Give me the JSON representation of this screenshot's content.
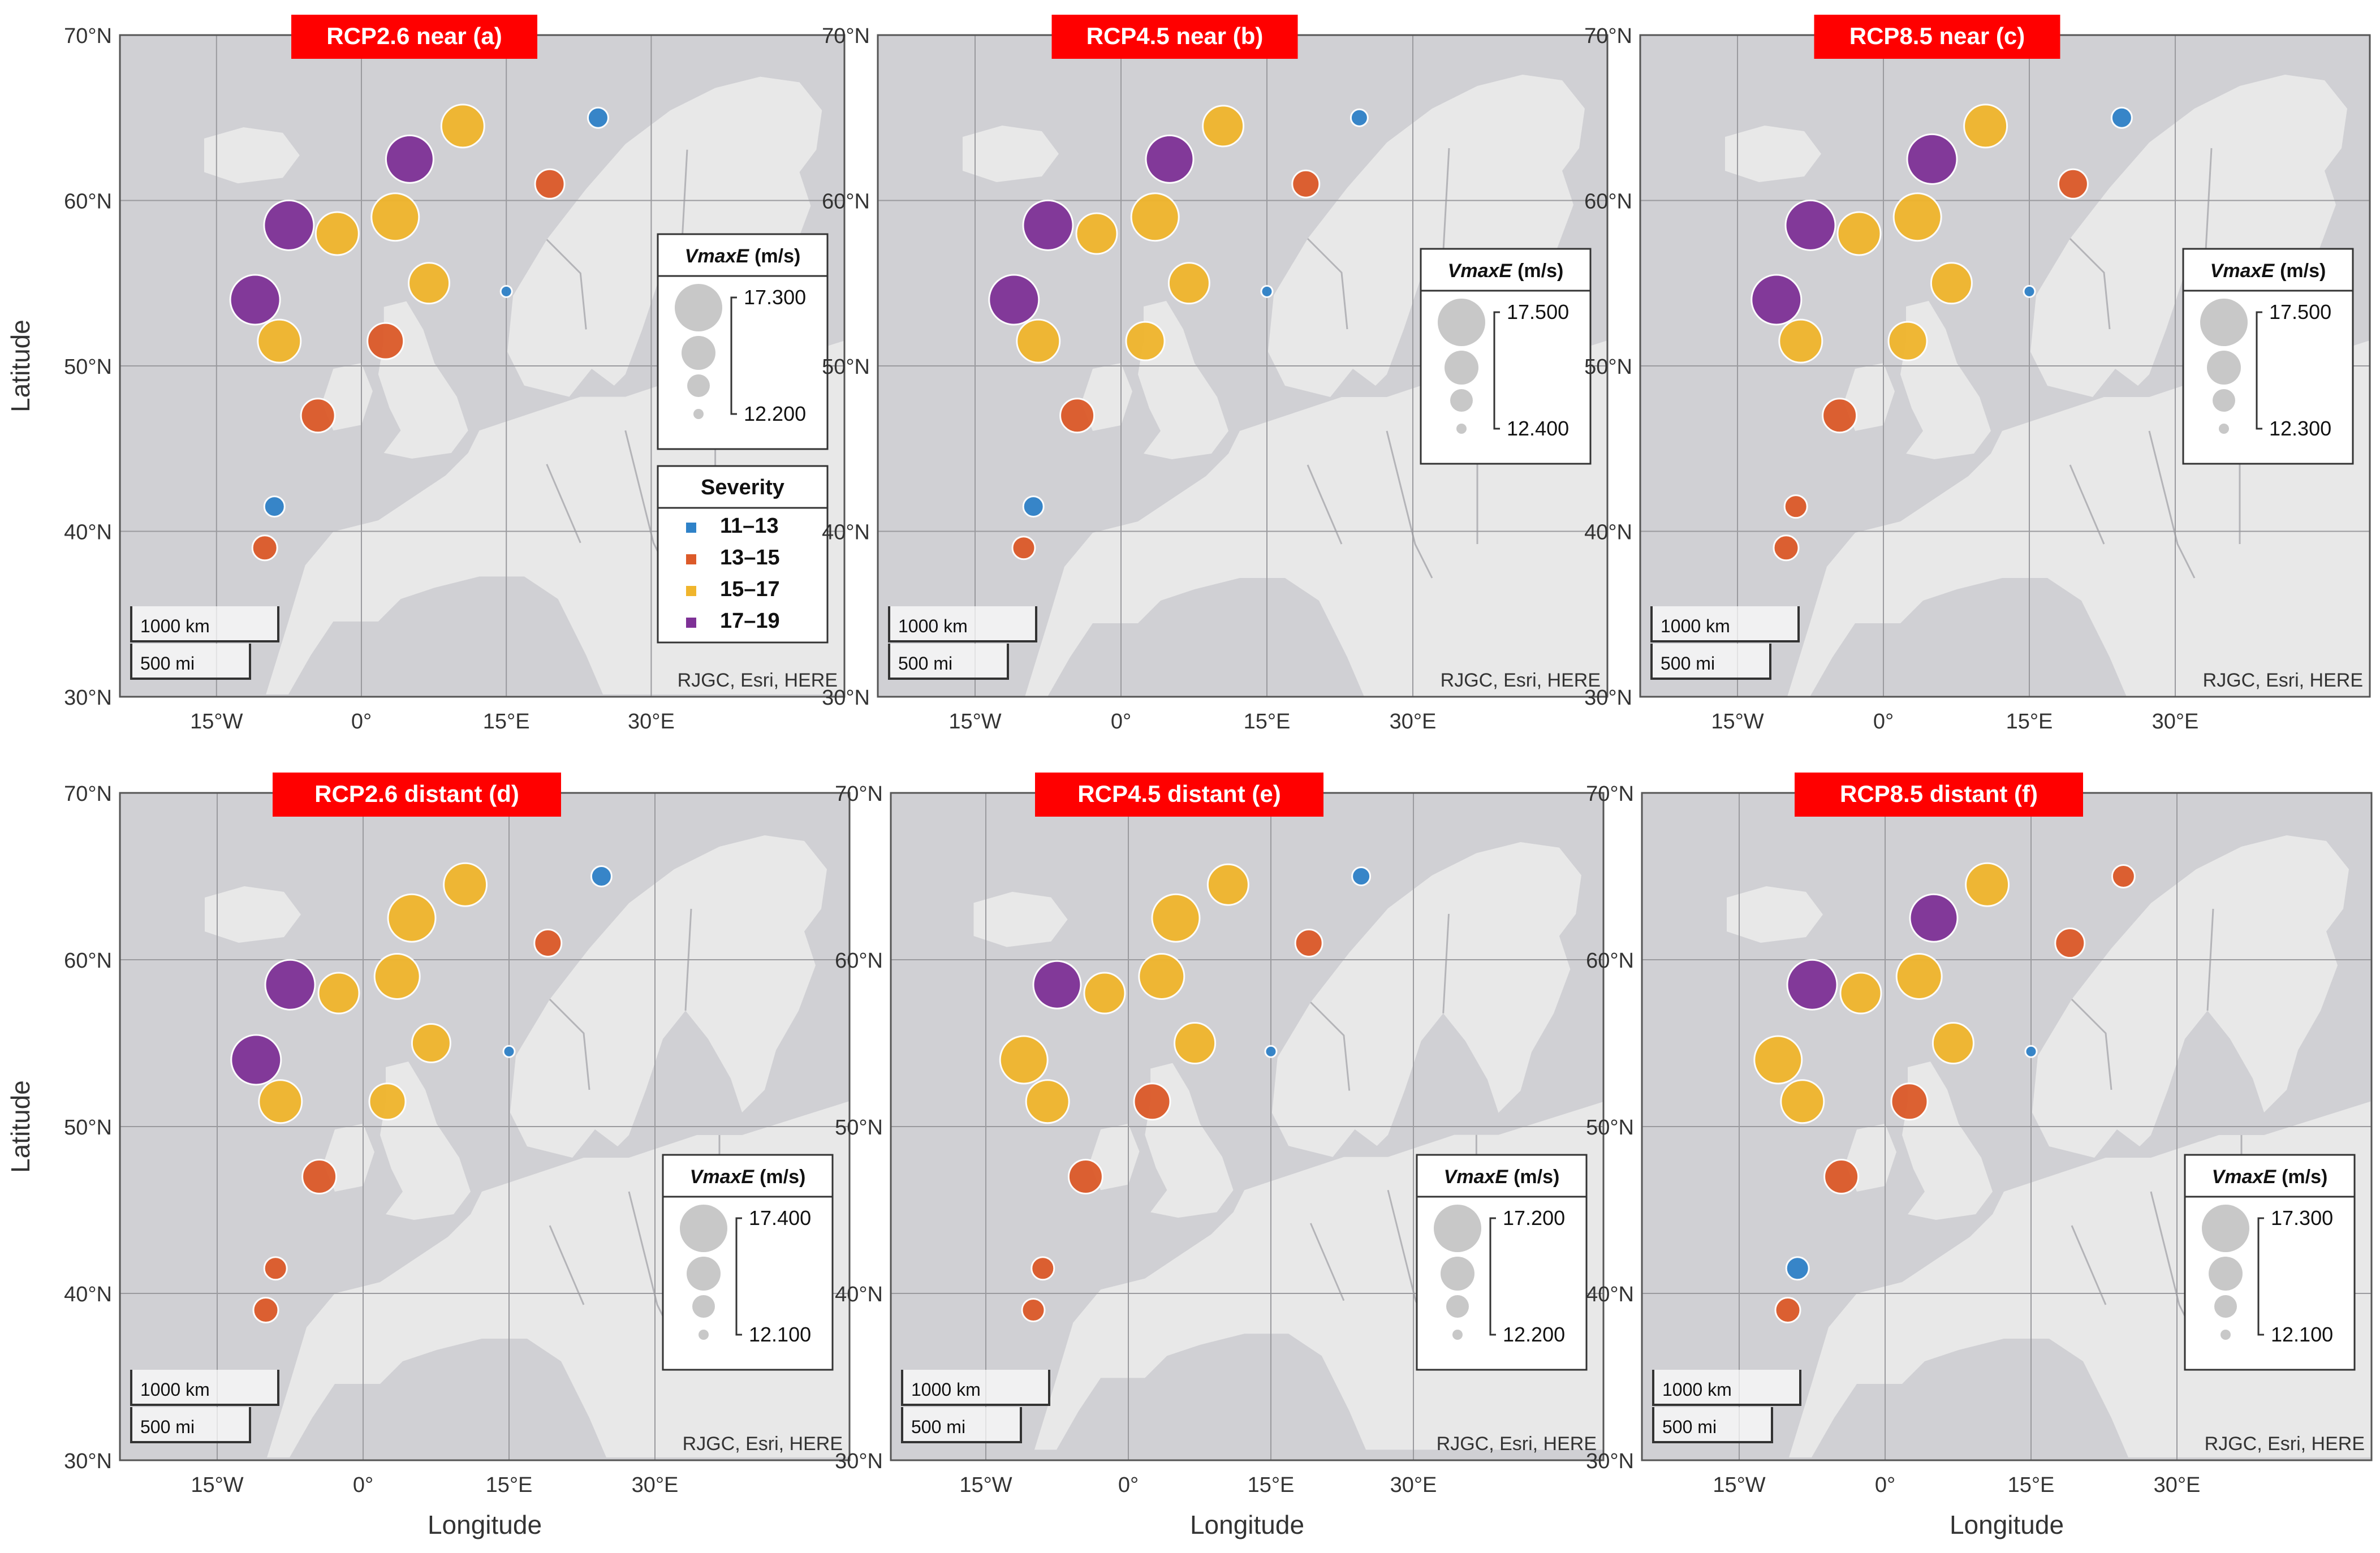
{
  "colors": {
    "sev_11_13": "#2f82c8",
    "sev_13_15": "#dc5a29",
    "sev_15_17": "#f0b52c",
    "sev_17_19": "#7e3196",
    "title_bg": "#ff0000",
    "ocean": "#d0d0d4",
    "land": "#e8e8e8",
    "size_marker": "#c8c8c8"
  },
  "axes": {
    "ylabel": "Latitude",
    "xlabel": "Longitude",
    "lat_ticks": [
      "70°N",
      "60°N",
      "50°N",
      "40°N",
      "30°N"
    ],
    "lon_ticks": [
      "15°W",
      "0°",
      "15°E",
      "30°E"
    ]
  },
  "legend_common": {
    "size_title_italic": "VmaxE",
    "size_title_unit": "(m/s)",
    "scale_km": "1000 km",
    "scale_mi": "500 mi",
    "attribution": "RJGC, Esri, HERE"
  },
  "severity_legend": {
    "title": "Severity",
    "items": [
      {
        "label": "11–13",
        "key": "sev_11_13"
      },
      {
        "label": "13–15",
        "key": "sev_13_15"
      },
      {
        "label": "15–17",
        "key": "sev_15_17"
      },
      {
        "label": "17–19",
        "key": "sev_17_19"
      }
    ]
  },
  "panels": [
    {
      "title": "RCP2.6 near (a)",
      "size_max": "17.300",
      "size_min": "12.200",
      "points": [
        {
          "lon": 24.5,
          "lat": 65.0,
          "sev": "sev_11_13",
          "r": 18
        },
        {
          "lon": 10.5,
          "lat": 64.5,
          "sev": "sev_15_17",
          "r": 38
        },
        {
          "lon": 5.0,
          "lat": 62.5,
          "sev": "sev_17_19",
          "r": 42
        },
        {
          "lon": 19.5,
          "lat": 61.0,
          "sev": "sev_13_15",
          "r": 26
        },
        {
          "lon": -7.5,
          "lat": 58.5,
          "sev": "sev_17_19",
          "r": 44
        },
        {
          "lon": -2.5,
          "lat": 58.0,
          "sev": "sev_15_17",
          "r": 38
        },
        {
          "lon": 3.5,
          "lat": 59.0,
          "sev": "sev_15_17",
          "r": 42
        },
        {
          "lon": 7.0,
          "lat": 55.0,
          "sev": "sev_15_17",
          "r": 36
        },
        {
          "lon": 15.0,
          "lat": 54.5,
          "sev": "sev_11_13",
          "r": 10
        },
        {
          "lon": -11.0,
          "lat": 54.0,
          "sev": "sev_17_19",
          "r": 44
        },
        {
          "lon": -8.5,
          "lat": 51.5,
          "sev": "sev_15_17",
          "r": 38
        },
        {
          "lon": 2.5,
          "lat": 51.5,
          "sev": "sev_13_15",
          "r": 32
        },
        {
          "lon": -4.5,
          "lat": 47.0,
          "sev": "sev_13_15",
          "r": 30
        },
        {
          "lon": -9.0,
          "lat": 41.5,
          "sev": "sev_11_13",
          "r": 18
        },
        {
          "lon": -10.0,
          "lat": 39.0,
          "sev": "sev_13_15",
          "r": 22
        }
      ]
    },
    {
      "title": "RCP4.5 near (b)",
      "size_max": "17.500",
      "size_min": "12.400",
      "points": [
        {
          "lon": 24.5,
          "lat": 65.0,
          "sev": "sev_11_13",
          "r": 15
        },
        {
          "lon": 10.5,
          "lat": 64.5,
          "sev": "sev_15_17",
          "r": 36
        },
        {
          "lon": 5.0,
          "lat": 62.5,
          "sev": "sev_17_19",
          "r": 42
        },
        {
          "lon": 19.0,
          "lat": 61.0,
          "sev": "sev_13_15",
          "r": 24
        },
        {
          "lon": -7.5,
          "lat": 58.5,
          "sev": "sev_17_19",
          "r": 44
        },
        {
          "lon": -2.5,
          "lat": 58.0,
          "sev": "sev_15_17",
          "r": 36
        },
        {
          "lon": 3.5,
          "lat": 59.0,
          "sev": "sev_15_17",
          "r": 42
        },
        {
          "lon": 7.0,
          "lat": 55.0,
          "sev": "sev_15_17",
          "r": 36
        },
        {
          "lon": 15.0,
          "lat": 54.5,
          "sev": "sev_11_13",
          "r": 10
        },
        {
          "lon": -11.0,
          "lat": 54.0,
          "sev": "sev_17_19",
          "r": 44
        },
        {
          "lon": -8.5,
          "lat": 51.5,
          "sev": "sev_15_17",
          "r": 38
        },
        {
          "lon": 2.5,
          "lat": 51.5,
          "sev": "sev_15_17",
          "r": 34
        },
        {
          "lon": -4.5,
          "lat": 47.0,
          "sev": "sev_13_15",
          "r": 30
        },
        {
          "lon": -9.0,
          "lat": 41.5,
          "sev": "sev_11_13",
          "r": 18
        },
        {
          "lon": -10.0,
          "lat": 39.0,
          "sev": "sev_13_15",
          "r": 20
        }
      ]
    },
    {
      "title": "RCP8.5 near (c)",
      "size_max": "17.500",
      "size_min": "12.300",
      "points": [
        {
          "lon": 24.5,
          "lat": 65.0,
          "sev": "sev_11_13",
          "r": 18
        },
        {
          "lon": 10.5,
          "lat": 64.5,
          "sev": "sev_15_17",
          "r": 38
        },
        {
          "lon": 5.0,
          "lat": 62.5,
          "sev": "sev_17_19",
          "r": 44
        },
        {
          "lon": 19.5,
          "lat": 61.0,
          "sev": "sev_13_15",
          "r": 26
        },
        {
          "lon": -7.5,
          "lat": 58.5,
          "sev": "sev_17_19",
          "r": 44
        },
        {
          "lon": -2.5,
          "lat": 58.0,
          "sev": "sev_15_17",
          "r": 38
        },
        {
          "lon": 3.5,
          "lat": 59.0,
          "sev": "sev_15_17",
          "r": 42
        },
        {
          "lon": 7.0,
          "lat": 55.0,
          "sev": "sev_15_17",
          "r": 36
        },
        {
          "lon": 15.0,
          "lat": 54.5,
          "sev": "sev_11_13",
          "r": 10
        },
        {
          "lon": -11.0,
          "lat": 54.0,
          "sev": "sev_17_19",
          "r": 44
        },
        {
          "lon": -8.5,
          "lat": 51.5,
          "sev": "sev_15_17",
          "r": 38
        },
        {
          "lon": 2.5,
          "lat": 51.5,
          "sev": "sev_15_17",
          "r": 34
        },
        {
          "lon": -4.5,
          "lat": 47.0,
          "sev": "sev_13_15",
          "r": 30
        },
        {
          "lon": -9.0,
          "lat": 41.5,
          "sev": "sev_13_15",
          "r": 20
        },
        {
          "lon": -10.0,
          "lat": 39.0,
          "sev": "sev_13_15",
          "r": 22
        }
      ]
    },
    {
      "title": "RCP2.6 distant (d)",
      "size_max": "17.400",
      "size_min": "12.100",
      "points": [
        {
          "lon": 24.5,
          "lat": 65.0,
          "sev": "sev_11_13",
          "r": 18
        },
        {
          "lon": 10.5,
          "lat": 64.5,
          "sev": "sev_15_17",
          "r": 38
        },
        {
          "lon": 5.0,
          "lat": 62.5,
          "sev": "sev_15_17",
          "r": 42
        },
        {
          "lon": 19.0,
          "lat": 61.0,
          "sev": "sev_13_15",
          "r": 24
        },
        {
          "lon": -7.5,
          "lat": 58.5,
          "sev": "sev_17_19",
          "r": 44
        },
        {
          "lon": -2.5,
          "lat": 58.0,
          "sev": "sev_15_17",
          "r": 36
        },
        {
          "lon": 3.5,
          "lat": 59.0,
          "sev": "sev_15_17",
          "r": 40
        },
        {
          "lon": 7.0,
          "lat": 55.0,
          "sev": "sev_15_17",
          "r": 34
        },
        {
          "lon": 15.0,
          "lat": 54.5,
          "sev": "sev_11_13",
          "r": 10
        },
        {
          "lon": -11.0,
          "lat": 54.0,
          "sev": "sev_17_19",
          "r": 44
        },
        {
          "lon": -8.5,
          "lat": 51.5,
          "sev": "sev_15_17",
          "r": 38
        },
        {
          "lon": 2.5,
          "lat": 51.5,
          "sev": "sev_15_17",
          "r": 32
        },
        {
          "lon": -4.5,
          "lat": 47.0,
          "sev": "sev_13_15",
          "r": 30
        },
        {
          "lon": -9.0,
          "lat": 41.5,
          "sev": "sev_13_15",
          "r": 20
        },
        {
          "lon": -10.0,
          "lat": 39.0,
          "sev": "sev_13_15",
          "r": 22
        }
      ]
    },
    {
      "title": "RCP4.5 distant (e)",
      "size_max": "17.200",
      "size_min": "12.200",
      "points": [
        {
          "lon": 24.5,
          "lat": 65.0,
          "sev": "sev_11_13",
          "r": 16
        },
        {
          "lon": 10.5,
          "lat": 64.5,
          "sev": "sev_15_17",
          "r": 36
        },
        {
          "lon": 5.0,
          "lat": 62.5,
          "sev": "sev_15_17",
          "r": 42
        },
        {
          "lon": 19.0,
          "lat": 61.0,
          "sev": "sev_13_15",
          "r": 24
        },
        {
          "lon": -7.5,
          "lat": 58.5,
          "sev": "sev_17_19",
          "r": 42
        },
        {
          "lon": -2.5,
          "lat": 58.0,
          "sev": "sev_15_17",
          "r": 36
        },
        {
          "lon": 3.5,
          "lat": 59.0,
          "sev": "sev_15_17",
          "r": 40
        },
        {
          "lon": 7.0,
          "lat": 55.0,
          "sev": "sev_15_17",
          "r": 36
        },
        {
          "lon": 15.0,
          "lat": 54.5,
          "sev": "sev_11_13",
          "r": 10
        },
        {
          "lon": -11.0,
          "lat": 54.0,
          "sev": "sev_15_17",
          "r": 42
        },
        {
          "lon": -8.5,
          "lat": 51.5,
          "sev": "sev_15_17",
          "r": 38
        },
        {
          "lon": 2.5,
          "lat": 51.5,
          "sev": "sev_13_15",
          "r": 32
        },
        {
          "lon": -4.5,
          "lat": 47.0,
          "sev": "sev_13_15",
          "r": 30
        },
        {
          "lon": -9.0,
          "lat": 41.5,
          "sev": "sev_13_15",
          "r": 20
        },
        {
          "lon": -10.0,
          "lat": 39.0,
          "sev": "sev_13_15",
          "r": 20
        }
      ]
    },
    {
      "title": "RCP8.5 distant (f)",
      "size_max": "17.300",
      "size_min": "12.100",
      "points": [
        {
          "lon": 24.5,
          "lat": 65.0,
          "sev": "sev_13_15",
          "r": 20
        },
        {
          "lon": 10.5,
          "lat": 64.5,
          "sev": "sev_15_17",
          "r": 38
        },
        {
          "lon": 5.0,
          "lat": 62.5,
          "sev": "sev_17_19",
          "r": 42
        },
        {
          "lon": 19.0,
          "lat": 61.0,
          "sev": "sev_13_15",
          "r": 26
        },
        {
          "lon": -7.5,
          "lat": 58.5,
          "sev": "sev_17_19",
          "r": 44
        },
        {
          "lon": -2.5,
          "lat": 58.0,
          "sev": "sev_15_17",
          "r": 36
        },
        {
          "lon": 3.5,
          "lat": 59.0,
          "sev": "sev_15_17",
          "r": 40
        },
        {
          "lon": 7.0,
          "lat": 55.0,
          "sev": "sev_15_17",
          "r": 36
        },
        {
          "lon": 15.0,
          "lat": 54.5,
          "sev": "sev_11_13",
          "r": 10
        },
        {
          "lon": -11.0,
          "lat": 54.0,
          "sev": "sev_15_17",
          "r": 42
        },
        {
          "lon": -8.5,
          "lat": 51.5,
          "sev": "sev_15_17",
          "r": 38
        },
        {
          "lon": 2.5,
          "lat": 51.5,
          "sev": "sev_13_15",
          "r": 32
        },
        {
          "lon": -4.5,
          "lat": 47.0,
          "sev": "sev_13_15",
          "r": 30
        },
        {
          "lon": -9.0,
          "lat": 41.5,
          "sev": "sev_11_13",
          "r": 20
        },
        {
          "lon": -10.0,
          "lat": 39.0,
          "sev": "sev_13_15",
          "r": 22
        }
      ]
    }
  ]
}
